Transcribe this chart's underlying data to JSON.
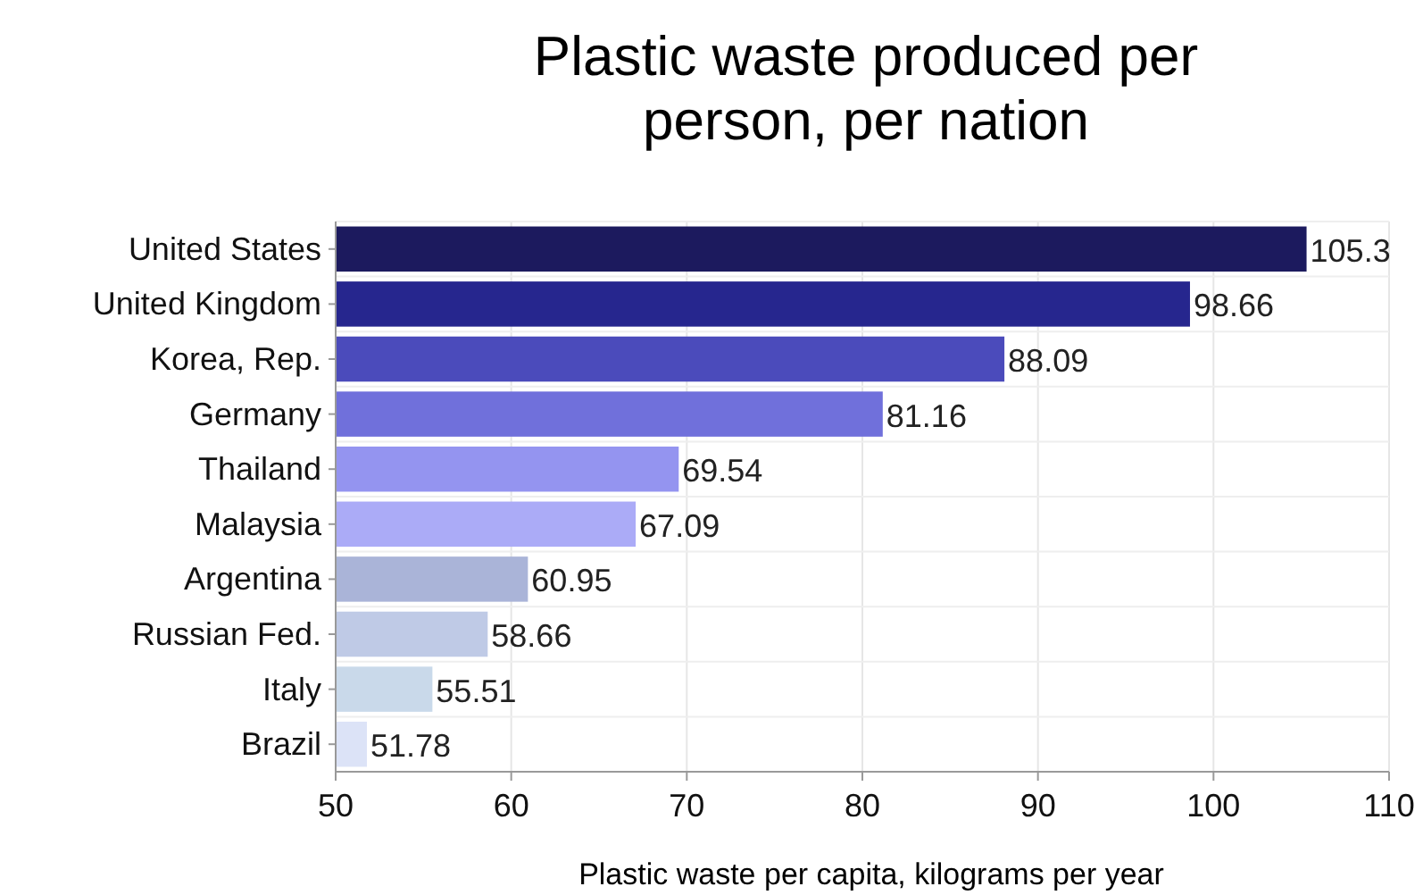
{
  "chart_data": {
    "type": "bar",
    "orientation": "horizontal",
    "title": "Plastic waste produced per person, per nation",
    "xlabel": "Plastic waste per capita, kilograms per year",
    "categories": [
      "United States",
      "United Kingdom",
      "Korea, Rep.",
      "Germany",
      "Thailand",
      "Malaysia",
      "Argentina",
      "Russian Fed.",
      "Italy",
      "Brazil"
    ],
    "values": [
      105.3,
      98.66,
      88.09,
      81.16,
      69.54,
      67.09,
      60.95,
      58.66,
      55.51,
      51.78
    ],
    "colors": [
      "#1c1a5e",
      "#26268e",
      "#4b4bbb",
      "#7070db",
      "#9494f0",
      "#ababf7",
      "#aab4d8",
      "#bfcae6",
      "#c9d9ea",
      "#dce3f7"
    ],
    "xlim": [
      50,
      110
    ],
    "xticks": [
      50,
      60,
      70,
      80,
      90,
      100,
      110
    ],
    "grid": true,
    "data_labels": true
  }
}
